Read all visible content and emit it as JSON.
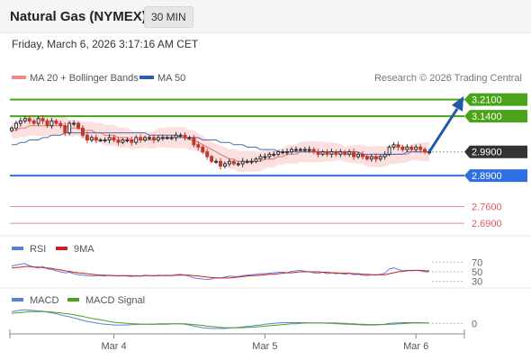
{
  "header": {
    "title": "Natural Gas (NYMEX)",
    "interval": "30 MIN",
    "timestamp": "Friday, March 6, 2026 3:17:16 AM CET"
  },
  "legend": {
    "items": [
      {
        "label": "MA 20 + Bollinger Bands",
        "color": "#f08a8a"
      },
      {
        "label": "MA 50",
        "color": "#2b5fad"
      }
    ],
    "source": "Research © 2026 Trading Central"
  },
  "colors": {
    "resistance": "#4aa31a",
    "support": "#2f6fe4",
    "target_low": "#e35a5a",
    "current": "#333333",
    "up_candle": "#2f2f2f",
    "down_candle": "#c0392b",
    "bollinger_fill": "#fbd9d9",
    "ma20": "#e57373",
    "ma50": "#4a6fb5",
    "rsi": "#5c7fd6",
    "rsi_ma": "#cc1f1f",
    "macd": "#5c7fd6",
    "macd_signal": "#4aa31a",
    "arrow": "#2557a7"
  },
  "chart_data": {
    "type": "candlestick",
    "title": "Natural Gas (NYMEX)",
    "interval": "30 MIN",
    "ylim": [
      2.66,
      3.25
    ],
    "x_labels": [
      {
        "label": "Mar 4",
        "index": 23
      },
      {
        "label": "Mar 5",
        "index": 57
      },
      {
        "label": "Mar 6",
        "index": 91
      }
    ],
    "series": [
      {
        "name": "close",
        "values": [
          3.09,
          3.11,
          3.12,
          3.13,
          3.12,
          3.11,
          3.13,
          3.12,
          3.1,
          3.12,
          3.11,
          3.1,
          3.07,
          3.11,
          3.11,
          3.09,
          3.06,
          3.04,
          3.05,
          3.04,
          3.04,
          3.04,
          3.05,
          3.04,
          3.03,
          3.04,
          3.04,
          3.03,
          3.05,
          3.04,
          3.05,
          3.05,
          3.04,
          3.05,
          3.05,
          3.05,
          3.05,
          3.06,
          3.06,
          3.05,
          3.05,
          3.02,
          3.01,
          2.99,
          2.97,
          2.95,
          2.95,
          2.93,
          2.94,
          2.95,
          2.94,
          2.94,
          2.95,
          2.95,
          2.95,
          2.96,
          2.97,
          2.97,
          2.98,
          2.98,
          2.99,
          2.99,
          2.99,
          3.0,
          3.0,
          3.0,
          3.0,
          3.0,
          2.99,
          2.98,
          2.99,
          2.98,
          2.99,
          2.98,
          2.99,
          2.98,
          2.99,
          2.97,
          2.98,
          2.97,
          2.96,
          2.97,
          2.96,
          2.97,
          2.98,
          3.01,
          3.02,
          3.01,
          3.0,
          3.01,
          3.0,
          3.01,
          3.0,
          2.99,
          2.99
        ]
      },
      {
        "name": "MA 20",
        "values": [
          3.08,
          3.08,
          3.09,
          3.09,
          3.1,
          3.1,
          3.1,
          3.1,
          3.1,
          3.1,
          3.1,
          3.1,
          3.1,
          3.09,
          3.09,
          3.09,
          3.08,
          3.08,
          3.08,
          3.07,
          3.07,
          3.06,
          3.06,
          3.06,
          3.05,
          3.05,
          3.05,
          3.04,
          3.04,
          3.04,
          3.04,
          3.04,
          3.04,
          3.05,
          3.05,
          3.05,
          3.05,
          3.05,
          3.05,
          3.05,
          3.04,
          3.04,
          3.03,
          3.02,
          3.01,
          3.0,
          2.99,
          2.98,
          2.97,
          2.96,
          2.96,
          2.95,
          2.95,
          2.95,
          2.95,
          2.95,
          2.95,
          2.96,
          2.96,
          2.96,
          2.97,
          2.97,
          2.98,
          2.98,
          2.98,
          2.99,
          2.99,
          2.99,
          2.99,
          2.99,
          2.99,
          2.99,
          2.99,
          2.99,
          2.99,
          2.98,
          2.98,
          2.98,
          2.98,
          2.98,
          2.97,
          2.97,
          2.97,
          2.97,
          2.97,
          2.98,
          2.98,
          2.98,
          2.98,
          2.98,
          2.99,
          2.99,
          2.99,
          2.99,
          2.99
        ]
      },
      {
        "name": "MA 50",
        "values": [
          3.02,
          3.02,
          3.03,
          3.03,
          3.04,
          3.04,
          3.04,
          3.05,
          3.05,
          3.06,
          3.06,
          3.06,
          3.07,
          3.07,
          3.07,
          3.07,
          3.07,
          3.07,
          3.07,
          3.07,
          3.07,
          3.07,
          3.07,
          3.07,
          3.07,
          3.07,
          3.07,
          3.07,
          3.07,
          3.07,
          3.07,
          3.06,
          3.06,
          3.06,
          3.06,
          3.06,
          3.06,
          3.06,
          3.05,
          3.05,
          3.05,
          3.05,
          3.05,
          3.04,
          3.04,
          3.04,
          3.04,
          3.03,
          3.03,
          3.03,
          3.02,
          3.02,
          3.02,
          3.01,
          3.01,
          3.01,
          3.0,
          3.0,
          3.0,
          3.0,
          2.99,
          2.99,
          2.99,
          2.99,
          2.99,
          2.99,
          2.99,
          2.99,
          2.99,
          2.99,
          2.99,
          2.99,
          2.99,
          2.99,
          2.99,
          2.99,
          2.99,
          2.99,
          2.99,
          2.98,
          2.98,
          2.98,
          2.98,
          2.98,
          2.98,
          2.98,
          2.98,
          2.98,
          2.98,
          2.99,
          2.99,
          2.99,
          2.99,
          2.99,
          2.99
        ]
      }
    ],
    "levels": [
      {
        "label": "3.2100",
        "value": 3.21,
        "kind": "resistance"
      },
      {
        "label": "3.1400",
        "value": 3.14,
        "kind": "resistance"
      },
      {
        "label": "2.9900",
        "value": 2.99,
        "kind": "current"
      },
      {
        "label": "2.8900",
        "value": 2.89,
        "kind": "support"
      },
      {
        "label": "2.7600",
        "value": 2.76,
        "kind": "target_low"
      },
      {
        "label": "2.6900",
        "value": 2.69,
        "kind": "target_low"
      }
    ],
    "rsi": {
      "legend": [
        "RSI",
        "9MA"
      ],
      "ticks": [
        "70",
        "50",
        "30"
      ],
      "values": [
        62,
        64,
        66,
        67,
        63,
        60,
        58,
        61,
        56,
        55,
        52,
        50,
        48,
        49,
        46,
        44,
        43,
        42,
        41,
        42,
        42,
        41,
        43,
        42,
        41,
        42,
        41,
        40,
        42,
        41,
        43,
        42,
        41,
        43,
        42,
        43,
        42,
        44,
        45,
        43,
        41,
        37,
        36,
        35,
        34,
        35,
        38,
        37,
        39,
        41,
        40,
        40,
        42,
        43,
        44,
        45,
        46,
        46,
        47,
        48,
        49,
        49,
        48,
        51,
        52,
        53,
        51,
        50,
        48,
        47,
        49,
        46,
        48,
        46,
        47,
        45,
        47,
        44,
        45,
        43,
        42,
        44,
        43,
        45,
        47,
        56,
        58,
        55,
        52,
        53,
        52,
        53,
        52,
        50,
        50
      ],
      "ma_values": [
        58,
        59,
        60,
        61,
        61,
        60,
        60,
        59,
        58,
        57,
        55,
        54,
        52,
        51,
        49,
        48,
        47,
        46,
        45,
        44,
        43,
        43,
        42,
        42,
        42,
        42,
        42,
        42,
        41,
        41,
        42,
        42,
        42,
        42,
        42,
        42,
        42,
        43,
        43,
        43,
        43,
        42,
        41,
        40,
        39,
        38,
        37,
        37,
        37,
        37,
        38,
        39,
        40,
        41,
        42,
        42,
        43,
        44,
        45,
        45,
        46,
        47,
        48,
        48,
        49,
        50,
        50,
        50,
        50,
        50,
        49,
        49,
        48,
        48,
        47,
        47,
        47,
        46,
        46,
        45,
        45,
        44,
        44,
        44,
        44,
        46,
        48,
        50,
        51,
        52,
        53,
        53,
        53,
        52,
        52
      ]
    },
    "macd": {
      "legend": [
        "MACD",
        "MACD Signal"
      ],
      "tick": "0",
      "values": [
        0.03,
        0.032,
        0.034,
        0.035,
        0.034,
        0.033,
        0.032,
        0.031,
        0.029,
        0.027,
        0.025,
        0.022,
        0.019,
        0.017,
        0.014,
        0.011,
        0.008,
        0.005,
        0.003,
        0.001,
        -0.001,
        -0.002,
        -0.003,
        -0.004,
        -0.004,
        -0.004,
        -0.004,
        -0.003,
        -0.003,
        -0.002,
        -0.002,
        -0.002,
        -0.002,
        -0.001,
        -0.001,
        -0.001,
        -0.001,
        -0.001,
        -0.001,
        -0.002,
        -0.004,
        -0.007,
        -0.009,
        -0.011,
        -0.012,
        -0.013,
        -0.013,
        -0.013,
        -0.013,
        -0.012,
        -0.011,
        -0.01,
        -0.009,
        -0.008,
        -0.007,
        -0.005,
        -0.004,
        -0.002,
        -0.001,
        0.0,
        0.001,
        0.002,
        0.002,
        0.002,
        0.002,
        0.002,
        0.002,
        0.001,
        0.001,
        0.001,
        0.001,
        0.0,
        0.0,
        -0.001,
        -0.001,
        -0.002,
        -0.002,
        -0.003,
        -0.003,
        -0.004,
        -0.004,
        -0.004,
        -0.004,
        -0.003,
        -0.002,
        0.0,
        0.001,
        0.001,
        0.002,
        0.002,
        0.002,
        0.002,
        0.002,
        0.001,
        0.001
      ],
      "signal": [
        0.026,
        0.027,
        0.028,
        0.029,
        0.03,
        0.03,
        0.03,
        0.03,
        0.03,
        0.029,
        0.028,
        0.027,
        0.025,
        0.024,
        0.022,
        0.02,
        0.018,
        0.015,
        0.013,
        0.011,
        0.009,
        0.007,
        0.005,
        0.003,
        0.002,
        0.001,
        0.0,
        -0.001,
        -0.001,
        -0.002,
        -0.002,
        -0.002,
        -0.002,
        -0.002,
        -0.002,
        -0.002,
        -0.001,
        -0.001,
        -0.001,
        -0.001,
        -0.002,
        -0.003,
        -0.004,
        -0.005,
        -0.007,
        -0.008,
        -0.009,
        -0.01,
        -0.011,
        -0.011,
        -0.011,
        -0.011,
        -0.011,
        -0.01,
        -0.01,
        -0.009,
        -0.008,
        -0.007,
        -0.006,
        -0.005,
        -0.004,
        -0.003,
        -0.002,
        -0.001,
        -0.001,
        0.0,
        0.001,
        0.001,
        0.001,
        0.001,
        0.001,
        0.001,
        0.001,
        0.001,
        0.0,
        0.0,
        -0.001,
        -0.001,
        -0.002,
        -0.002,
        -0.003,
        -0.003,
        -0.003,
        -0.003,
        -0.003,
        -0.002,
        -0.002,
        -0.001,
        -0.001,
        0.0,
        0.001,
        0.001,
        0.001,
        0.001,
        0.001
      ]
    }
  }
}
